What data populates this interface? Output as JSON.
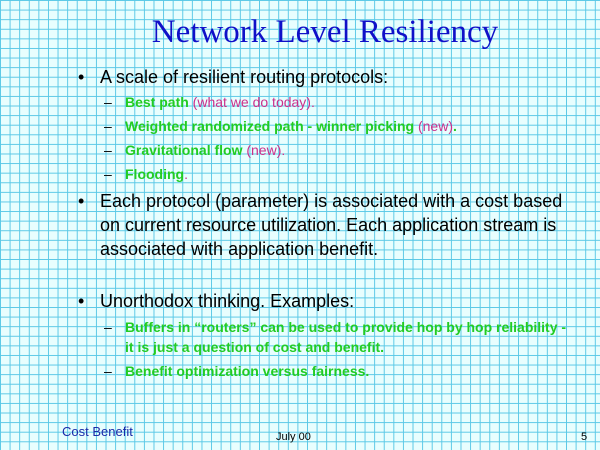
{
  "title": "Network Level Resiliency",
  "bullet_symbol": "•",
  "dash_symbol": "–",
  "points": [
    {
      "text": "A scale of resilient routing protocols:",
      "subpoints": [
        {
          "green": "Best path",
          "note": " (what we do today)",
          "end": "."
        },
        {
          "green": "Weighted randomized path - winner picking",
          "note": " (new)",
          "end": "."
        },
        {
          "green": "Gravitational flow",
          "note": " (new)",
          "end": "."
        },
        {
          "green": "Flooding",
          "note": "",
          "end": "."
        }
      ]
    },
    {
      "text": "Each protocol (parameter) is associated with a cost based on current resource utilization. Each application stream is associated with application benefit."
    },
    {
      "text": "Unorthodox thinking. Examples:",
      "subpoints": [
        {
          "green": "Buffers in “routers” can be used to provide hop by hop reliability - it is just a question of cost and benefit."
        },
        {
          "green": "Benefit optimization versus fairness."
        }
      ]
    }
  ],
  "footer": {
    "left": "Cost Benefit",
    "center": "July 00",
    "page": "5"
  },
  "colors": {
    "title": "#1010c8",
    "highlight_green": "#22cc22",
    "note_magenta": "#cc2f8a",
    "grid": "#5ac8e6",
    "background": "#e8fefe"
  }
}
